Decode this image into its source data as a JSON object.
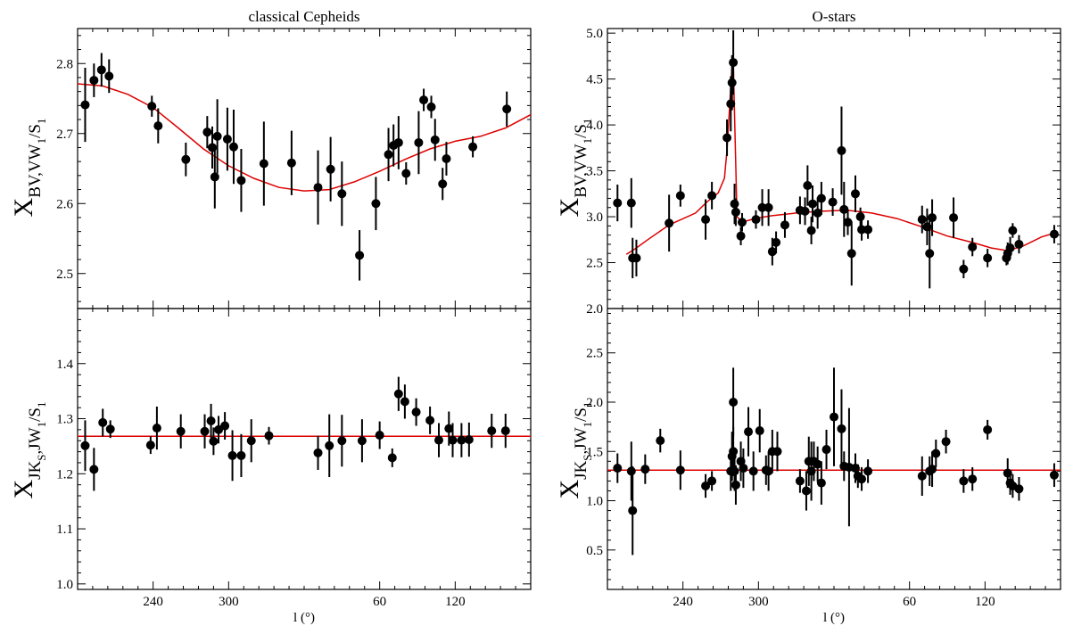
{
  "chart_data": [
    {
      "type": "scatter",
      "panel": "left-top",
      "title": "classical Cepheids",
      "ylabel": {
        "main": "X",
        "sub": "BV,VW",
        "sub2": "1",
        "tail": "/S",
        "sub3": "1"
      },
      "xlabel": "",
      "xlim": [
        540,
        180
      ],
      "ylim": [
        2.45,
        2.85
      ],
      "x_ticks": [
        {
          "v": 480,
          "label": "240"
        },
        {
          "v": 420,
          "label": "300"
        },
        {
          "v": 300,
          "label": "60"
        },
        {
          "v": 240,
          "label": "120"
        }
      ],
      "y_ticks": [
        {
          "v": 2.5,
          "label": "2.5"
        },
        {
          "v": 2.6,
          "label": "2.6"
        },
        {
          "v": 2.7,
          "label": "2.7"
        },
        {
          "v": 2.8,
          "label": "2.8"
        }
      ],
      "points": [
        [
          534,
          2.741,
          0.053
        ],
        [
          527,
          2.776,
          0.024
        ],
        [
          521,
          2.791,
          0.024
        ],
        [
          515,
          2.782,
          0.024
        ],
        [
          481,
          2.739,
          0.015
        ],
        [
          476,
          2.711,
          0.025
        ],
        [
          454,
          2.663,
          0.024
        ],
        [
          437,
          2.702,
          0.023
        ],
        [
          433,
          2.68,
          0.03
        ],
        [
          431,
          2.638,
          0.045
        ],
        [
          429,
          2.696,
          0.053
        ],
        [
          421,
          2.692,
          0.045
        ],
        [
          416,
          2.681,
          0.053
        ],
        [
          410,
          2.633,
          0.045
        ],
        [
          392,
          2.657,
          0.06
        ],
        [
          370,
          2.658,
          0.046
        ],
        [
          349,
          2.623,
          0.053
        ],
        [
          339,
          2.649,
          0.046
        ],
        [
          330,
          2.614,
          0.046
        ],
        [
          316,
          2.526,
          0.036
        ],
        [
          303,
          2.6,
          0.038
        ],
        [
          293,
          2.67,
          0.038
        ],
        [
          289,
          2.683,
          0.03
        ],
        [
          285,
          2.687,
          0.038
        ],
        [
          279,
          2.643,
          0.016
        ],
        [
          269,
          2.687,
          0.045
        ],
        [
          265,
          2.748,
          0.016
        ],
        [
          259,
          2.738,
          0.016
        ],
        [
          256,
          2.691,
          0.03
        ],
        [
          250,
          2.628,
          0.023
        ],
        [
          247,
          2.664,
          0.024
        ],
        [
          226,
          2.681,
          0.015
        ],
        [
          199,
          2.735,
          0.025
        ]
      ],
      "fit_line": [
        [
          540,
          2.771
        ],
        [
          520,
          2.768
        ],
        [
          500,
          2.756
        ],
        [
          480,
          2.737
        ],
        [
          460,
          2.708
        ],
        [
          440,
          2.678
        ],
        [
          420,
          2.654
        ],
        [
          400,
          2.636
        ],
        [
          380,
          2.623
        ],
        [
          360,
          2.618
        ],
        [
          340,
          2.62
        ],
        [
          320,
          2.631
        ],
        [
          300,
          2.646
        ],
        [
          280,
          2.663
        ],
        [
          260,
          2.678
        ],
        [
          240,
          2.689
        ],
        [
          220,
          2.696
        ],
        [
          200,
          2.708
        ],
        [
          180,
          2.727
        ]
      ],
      "colors": {
        "points": "#000000",
        "fit": "#dd0000"
      }
    },
    {
      "type": "scatter",
      "panel": "left-bottom",
      "title": "",
      "ylabel": {
        "main": "X",
        "sub": "JK",
        "sub2": "S",
        "tail": ",JW",
        "sub3": "1",
        "tail2": "/S",
        "sub4": "1"
      },
      "xlabel": "l (°)",
      "xlim": [
        540,
        180
      ],
      "ylim": [
        0.99,
        1.5
      ],
      "x_ticks": [
        {
          "v": 480,
          "label": "240"
        },
        {
          "v": 420,
          "label": "300"
        },
        {
          "v": 300,
          "label": "60"
        },
        {
          "v": 240,
          "label": "120"
        }
      ],
      "y_ticks": [
        {
          "v": 1.0,
          "label": "1.0"
        },
        {
          "v": 1.1,
          "label": "1.1"
        },
        {
          "v": 1.2,
          "label": "1.2"
        },
        {
          "v": 1.3,
          "label": "1.3"
        },
        {
          "v": 1.4,
          "label": "1.4"
        }
      ],
      "points": [
        [
          534,
          1.251,
          0.046
        ],
        [
          527,
          1.208,
          0.039
        ],
        [
          520,
          1.293,
          0.025
        ],
        [
          514,
          1.281,
          0.016
        ],
        [
          482,
          1.252,
          0.016
        ],
        [
          477,
          1.283,
          0.039
        ],
        [
          458,
          1.277,
          0.031
        ],
        [
          439,
          1.277,
          0.031
        ],
        [
          434,
          1.296,
          0.031
        ],
        [
          432,
          1.259,
          0.025
        ],
        [
          428,
          1.28,
          0.025
        ],
        [
          423,
          1.287,
          0.025
        ],
        [
          417,
          1.233,
          0.046
        ],
        [
          410,
          1.233,
          0.039
        ],
        [
          402,
          1.26,
          0.039
        ],
        [
          388,
          1.269,
          0.016
        ],
        [
          349,
          1.238,
          0.031
        ],
        [
          340,
          1.251,
          0.057
        ],
        [
          330,
          1.26,
          0.047
        ],
        [
          314,
          1.26,
          0.039
        ],
        [
          300,
          1.27,
          0.025
        ],
        [
          290,
          1.229,
          0.017
        ],
        [
          285,
          1.345,
          0.031
        ],
        [
          280,
          1.331,
          0.031
        ],
        [
          271,
          1.312,
          0.025
        ],
        [
          260,
          1.297,
          0.025
        ],
        [
          253,
          1.261,
          0.031
        ],
        [
          245,
          1.282,
          0.031
        ],
        [
          242,
          1.261,
          0.031
        ],
        [
          235,
          1.261,
          0.031
        ],
        [
          229,
          1.262,
          0.031
        ],
        [
          211,
          1.278,
          0.031
        ],
        [
          200,
          1.278,
          0.031
        ]
      ],
      "fit_line": [
        [
          540,
          1.268
        ],
        [
          180,
          1.268
        ]
      ],
      "colors": {
        "points": "#000000",
        "fit": "#dd0000"
      }
    },
    {
      "type": "scatter",
      "panel": "right-top",
      "title": "O-stars",
      "ylabel": {
        "main": "X",
        "sub": "BV,VW",
        "sub2": "1",
        "tail": "/S",
        "sub3": "1"
      },
      "xlabel": "",
      "xlim": [
        540,
        180
      ],
      "ylim": [
        2.0,
        5.05
      ],
      "x_ticks": [
        {
          "v": 480,
          "label": "240"
        },
        {
          "v": 420,
          "label": "300"
        },
        {
          "v": 300,
          "label": "60"
        },
        {
          "v": 240,
          "label": "120"
        }
      ],
      "y_ticks": [
        {
          "v": 2.0,
          "label": "2.0"
        },
        {
          "v": 2.5,
          "label": "2.5"
        },
        {
          "v": 3.0,
          "label": "3.0"
        },
        {
          "v": 3.5,
          "label": "3.5"
        },
        {
          "v": 4.0,
          "label": "4.0"
        },
        {
          "v": 4.5,
          "label": "4.5"
        },
        {
          "v": 5.0,
          "label": "5.0"
        }
      ],
      "points": [
        [
          532,
          3.15,
          0.2
        ],
        [
          521,
          3.15,
          0.27
        ],
        [
          520,
          2.55,
          0.22
        ],
        [
          517,
          2.55,
          0.2
        ],
        [
          491,
          2.93,
          0.31
        ],
        [
          482,
          3.23,
          0.12
        ],
        [
          462,
          2.97,
          0.22
        ],
        [
          457,
          3.23,
          0.15
        ],
        [
          445,
          3.86,
          0.2
        ],
        [
          442,
          4.23,
          0.3
        ],
        [
          441,
          4.46,
          0.3
        ],
        [
          440,
          4.68,
          0.35
        ],
        [
          439,
          3.14,
          0.22
        ],
        [
          438,
          3.05,
          0.15
        ],
        [
          434,
          2.79,
          0.1
        ],
        [
          433,
          2.94,
          0.1
        ],
        [
          422,
          2.97,
          0.1
        ],
        [
          417,
          3.1,
          0.2
        ],
        [
          412,
          3.1,
          0.2
        ],
        [
          409,
          2.62,
          0.15
        ],
        [
          406,
          2.72,
          0.12
        ],
        [
          399,
          2.91,
          0.14
        ],
        [
          387,
          3.07,
          0.15
        ],
        [
          383,
          3.06,
          0.15
        ],
        [
          381,
          3.34,
          0.22
        ],
        [
          378,
          2.85,
          0.15
        ],
        [
          377,
          3.14,
          0.2
        ],
        [
          373,
          3.04,
          0.17
        ],
        [
          370,
          3.2,
          0.18
        ],
        [
          361,
          3.16,
          0.15
        ],
        [
          354,
          3.72,
          0.48
        ],
        [
          352,
          3.08,
          0.3
        ],
        [
          349,
          2.94,
          0.14
        ],
        [
          346,
          2.6,
          0.35
        ],
        [
          343,
          3.25,
          0.2
        ],
        [
          339,
          3.0,
          0.1
        ],
        [
          338,
          2.86,
          0.12
        ],
        [
          333,
          2.86,
          0.1
        ],
        [
          290,
          2.97,
          0.15
        ],
        [
          286,
          2.89,
          0.2
        ],
        [
          284,
          2.6,
          0.38
        ],
        [
          282,
          2.99,
          0.2
        ],
        [
          265,
          2.99,
          0.22
        ],
        [
          257,
          2.43,
          0.1
        ],
        [
          250,
          2.67,
          0.1
        ],
        [
          238,
          2.55,
          0.1
        ],
        [
          223,
          2.55,
          0.08
        ],
        [
          222,
          2.6,
          0.12
        ],
        [
          220,
          2.66,
          0.12
        ],
        [
          218,
          2.85,
          0.08
        ],
        [
          213,
          2.7,
          0.1
        ],
        [
          185,
          2.81,
          0.1
        ]
      ],
      "fit_line": [
        [
          525,
          2.59
        ],
        [
          518,
          2.65
        ],
        [
          508,
          2.75
        ],
        [
          491,
          2.91
        ],
        [
          470,
          3.04
        ],
        [
          461,
          3.16
        ],
        [
          452,
          3.26
        ],
        [
          447,
          3.42
        ],
        [
          445,
          3.73
        ],
        [
          441,
          4.64
        ],
        [
          440,
          4.68
        ],
        [
          437,
          3.0
        ],
        [
          433,
          2.94
        ],
        [
          423,
          2.98
        ],
        [
          410,
          3.01
        ],
        [
          390,
          3.04
        ],
        [
          370,
          3.06
        ],
        [
          350,
          3.07
        ],
        [
          330,
          3.04
        ],
        [
          310,
          2.98
        ],
        [
          290,
          2.89
        ],
        [
          270,
          2.79
        ],
        [
          250,
          2.72
        ],
        [
          235,
          2.66
        ],
        [
          222,
          2.63
        ],
        [
          210,
          2.68
        ],
        [
          195,
          2.78
        ],
        [
          183,
          2.83
        ]
      ],
      "colors": {
        "points": "#000000",
        "fit": "#dd0000"
      }
    },
    {
      "type": "scatter",
      "panel": "right-bottom",
      "title": "",
      "ylabel": {
        "main": "X",
        "sub": "JK",
        "sub2": "S",
        "tail": ",JW",
        "sub3": "1",
        "tail2": "/S",
        "sub4": "1"
      },
      "xlabel": "l (°)",
      "xlim": [
        540,
        180
      ],
      "ylim": [
        0.1,
        2.95
      ],
      "x_ticks": [
        {
          "v": 480,
          "label": "240"
        },
        {
          "v": 420,
          "label": "300"
        },
        {
          "v": 300,
          "label": "60"
        },
        {
          "v": 240,
          "label": "120"
        }
      ],
      "y_ticks": [
        {
          "v": 0.5,
          "label": "0.5"
        },
        {
          "v": 1.0,
          "label": "1.0"
        },
        {
          "v": 1.5,
          "label": "1.5"
        },
        {
          "v": 2.0,
          "label": "2.0"
        },
        {
          "v": 2.5,
          "label": "2.5"
        }
      ],
      "points": [
        [
          532,
          1.33,
          0.15
        ],
        [
          521,
          1.3,
          0.3
        ],
        [
          520,
          0.9,
          0.45
        ],
        [
          510,
          1.32,
          0.15
        ],
        [
          498,
          1.61,
          0.12
        ],
        [
          482,
          1.31,
          0.2
        ],
        [
          462,
          1.15,
          0.12
        ],
        [
          457,
          1.2,
          0.1
        ],
        [
          442,
          1.3,
          0.2
        ],
        [
          441,
          1.45,
          0.25
        ],
        [
          440,
          1.5,
          0.25
        ],
        [
          440,
          2.0,
          0.35
        ],
        [
          439,
          1.3,
          0.2
        ],
        [
          438,
          1.16,
          0.2
        ],
        [
          434,
          1.4,
          0.2
        ],
        [
          432,
          1.33,
          0.2
        ],
        [
          428,
          1.7,
          0.25
        ],
        [
          424,
          1.3,
          0.2
        ],
        [
          419,
          1.71,
          0.22
        ],
        [
          414,
          1.31,
          0.15
        ],
        [
          412,
          1.3,
          0.2
        ],
        [
          409,
          1.5,
          0.22
        ],
        [
          405,
          1.5,
          0.2
        ],
        [
          387,
          1.2,
          0.12
        ],
        [
          382,
          1.1,
          0.2
        ],
        [
          380,
          1.4,
          0.25
        ],
        [
          378,
          1.3,
          0.3
        ],
        [
          376,
          1.4,
          0.2
        ],
        [
          373,
          1.37,
          0.18
        ],
        [
          370,
          1.18,
          0.22
        ],
        [
          366,
          1.52,
          0.2
        ],
        [
          360,
          1.85,
          0.5
        ],
        [
          354,
          1.73,
          0.4
        ],
        [
          352,
          1.35,
          0.15
        ],
        [
          348,
          1.34,
          0.6
        ],
        [
          343,
          1.33,
          0.15
        ],
        [
          341,
          1.25,
          0.12
        ],
        [
          338,
          1.22,
          0.12
        ],
        [
          333,
          1.3,
          0.12
        ],
        [
          290,
          1.25,
          0.2
        ],
        [
          284,
          1.3,
          0.15
        ],
        [
          282,
          1.32,
          0.18
        ],
        [
          279,
          1.48,
          0.14
        ],
        [
          271,
          1.6,
          0.12
        ],
        [
          257,
          1.2,
          0.12
        ],
        [
          250,
          1.22,
          0.12
        ],
        [
          238,
          1.72,
          0.1
        ],
        [
          222,
          1.28,
          0.15
        ],
        [
          220,
          1.18,
          0.12
        ],
        [
          218,
          1.15,
          0.12
        ],
        [
          213,
          1.12,
          0.12
        ],
        [
          185,
          1.26,
          0.12
        ]
      ],
      "fit_line": [
        [
          540,
          1.31
        ],
        [
          180,
          1.31
        ]
      ],
      "colors": {
        "points": "#000000",
        "fit": "#dd0000"
      }
    }
  ]
}
